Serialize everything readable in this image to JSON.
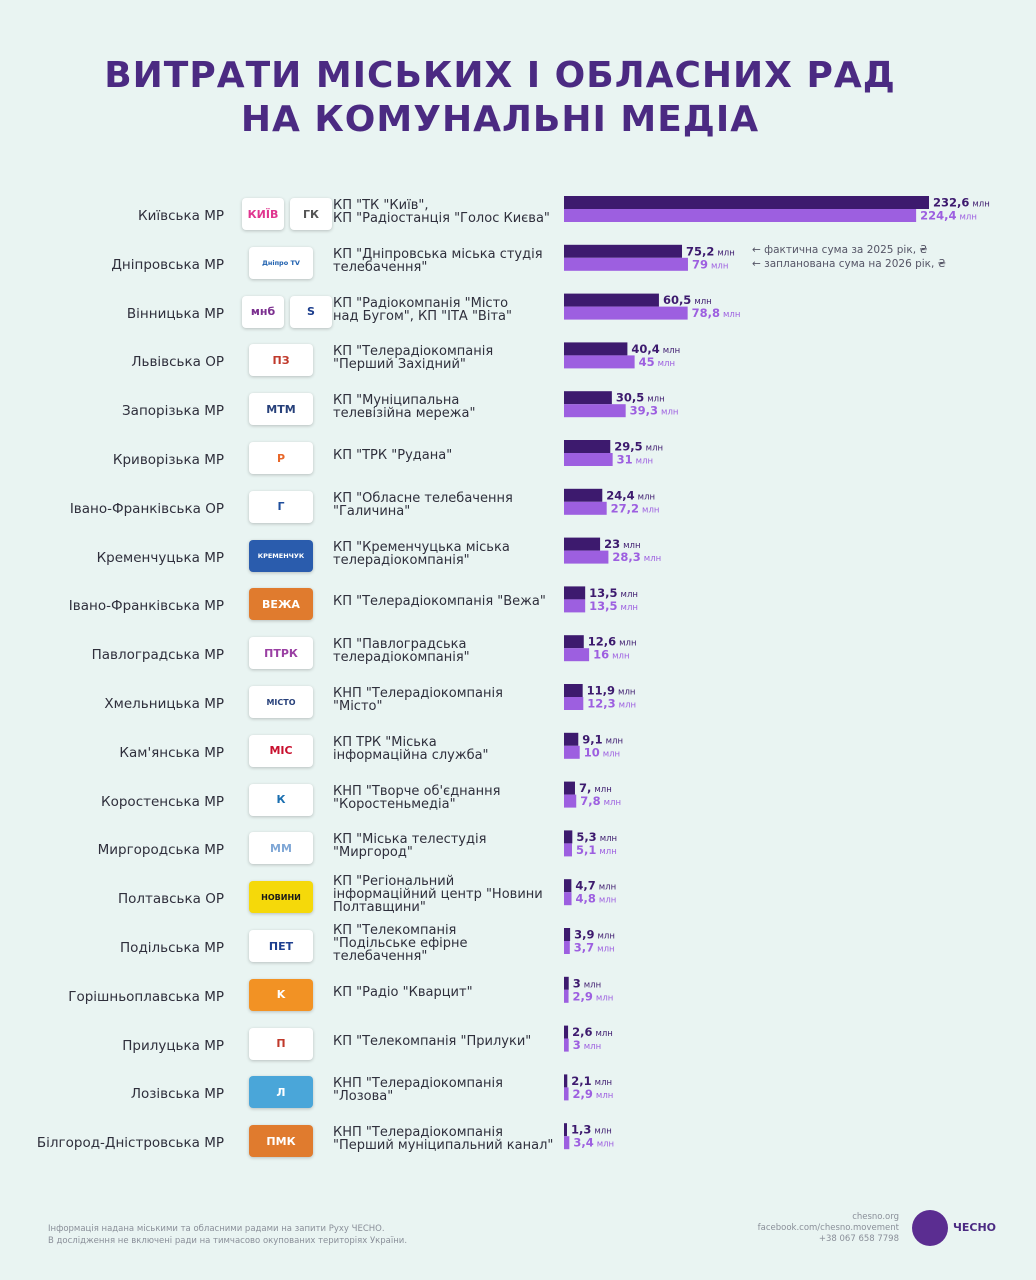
{
  "title": {
    "line1": "ВИТРАТИ МІСЬКИХ І ОБЛАСНИХ РАД",
    "line2": "НА КОМУНАЛЬНІ МЕДІА"
  },
  "legend": {
    "actual": "← фактична сума за 2025 рік, ₴",
    "planned": "← запланована сума на 2026 рік, ₴"
  },
  "colors": {
    "actual": "#3d1a6e",
    "planned": "#9d5fe0",
    "title": "#4b2a82",
    "background": "#e9f4f2"
  },
  "unit": "млн",
  "rows": [
    {
      "council": "Київська МР",
      "media": [
        "КП \"ТК \"Київ\",",
        "КП \"Радіостанція \"Голос Києва\""
      ],
      "logos": [
        {
          "icon": "kyiv-tv-logo-icon",
          "text": "КИЇВ",
          "color": "#e0358f"
        },
        {
          "icon": "holos-kyieva-logo-icon",
          "text": "ГК",
          "color": "#555"
        }
      ]
    },
    {
      "council": "Дніпровська МР",
      "media": [
        "КП \"Дніпровська міська студія",
        "телебачення\""
      ],
      "logos": [
        {
          "icon": "dnipro-tv-logo-icon",
          "text": "Дніпро TV",
          "color": "#1d5fae"
        }
      ]
    },
    {
      "council": "Вінницька МР",
      "media": [
        "КП \"Радіокомпанія \"Місто",
        "над Бугом\", КП \"ІТА \"Віта\""
      ],
      "logos": [
        {
          "icon": "misto-nad-buhom-logo-icon",
          "text": "мнб",
          "color": "#7b2f8f"
        },
        {
          "icon": "vita-logo-icon",
          "text": "S",
          "color": "#1a3c8c"
        }
      ]
    },
    {
      "council": "Львівська ОР",
      "media": [
        "КП \"Телерадіокомпанія",
        "\"Перший Західний\""
      ],
      "logos": [
        {
          "icon": "pershyi-zakhidnyi-logo-icon",
          "text": "ПЗ",
          "color": "#c0392b"
        }
      ]
    },
    {
      "council": "Запорізька МР",
      "media": [
        "КП \"Муніципальна",
        "телевізійна мережа\""
      ],
      "logos": [
        {
          "icon": "mtm-logo-icon",
          "text": "МТМ",
          "color": "#27407a"
        }
      ]
    },
    {
      "council": "Криворізька МР",
      "media": [
        "КП \"ТРК \"Рудана\""
      ],
      "logos": [
        {
          "icon": "rudana-logo-icon",
          "text": "Р",
          "color": "#e8672a"
        }
      ]
    },
    {
      "council": "Івано-Франківська ОР",
      "media": [
        "КП \"Обласне телебачення",
        "\"Галичина\""
      ],
      "logos": [
        {
          "icon": "halychyna-logo-icon",
          "text": "Г",
          "color": "#1f4e9c"
        }
      ]
    },
    {
      "council": "Кременчуцька МР",
      "media": [
        "КП \"Кременчуцька міська",
        "телерадіокомпанія\""
      ],
      "logos": [
        {
          "icon": "kremenchuk-logo-icon",
          "text": "КРЕМЕНЧУК",
          "color": "#ffffff",
          "bg": "#2a5cad"
        }
      ]
    },
    {
      "council": "Івано-Франківська МР",
      "media": [
        "КП \"Телерадіокомпанія \"Вежа\""
      ],
      "logos": [
        {
          "icon": "vezha-logo-icon",
          "text": "ВЕЖА",
          "color": "#ffffff",
          "bg": "#e07b2e"
        }
      ]
    },
    {
      "council": "Павлоградська МР",
      "media": [
        "КП \"Павлоградська",
        "телерадіокомпанія\""
      ],
      "logos": [
        {
          "icon": "ptrk-logo-icon",
          "text": "ПТРК",
          "color": "#9a3fa3"
        }
      ]
    },
    {
      "council": "Хмельницька МР",
      "media": [
        "КНП \"Телерадіокомпанія",
        "\"Місто\""
      ],
      "logos": [
        {
          "icon": "misto-logo-icon",
          "text": "МІСТО",
          "color": "#27407a"
        }
      ]
    },
    {
      "council": "Кам'янська МР",
      "media": [
        "КП ТРК \"Міська",
        "інформаційна служба\""
      ],
      "logos": [
        {
          "icon": "mis-logo-icon",
          "text": "МІС",
          "color": "#c8102e"
        }
      ]
    },
    {
      "council": "Коростенська МР",
      "media": [
        "КНП \"Творче об'єднання",
        "\"Коростеньмедіа\""
      ],
      "logos": [
        {
          "icon": "korostenmedia-logo-icon",
          "text": "К",
          "color": "#1b6fb0"
        }
      ]
    },
    {
      "council": "Миргородська МР",
      "media": [
        "КП \"Міська телестудія",
        "\"Миргород\""
      ],
      "logos": [
        {
          "icon": "myrhorod-logo-icon",
          "text": "ММ",
          "color": "#7fa7d6"
        }
      ]
    },
    {
      "council": "Полтавська ОР",
      "media": [
        "КП \"Регіональний",
        "інформаційний центр \"Новини",
        "Полтавщини\""
      ],
      "logos": [
        {
          "icon": "novyny-poltavshchyny-logo-icon",
          "text": "НОВИНИ",
          "color": "#1a1a1a",
          "bg": "#f5d90a"
        }
      ]
    },
    {
      "council": "Подільська МР",
      "media": [
        "КП \"Телекомпанія",
        "\"Подільське ефірне",
        "телебачення\""
      ],
      "logos": [
        {
          "icon": "pet-logo-icon",
          "text": "ПЕТ",
          "color": "#1d3f8f"
        }
      ]
    },
    {
      "council": "Горішньоплавська МР",
      "media": [
        "КП \"Радіо \"Кварцит\""
      ],
      "logos": [
        {
          "icon": "kvartsyt-logo-icon",
          "text": "K",
          "color": "#ffffff",
          "bg": "#f29224"
        }
      ]
    },
    {
      "council": "Прилуцька МР",
      "media": [
        "КП \"Телекомпанія \"Прилуки\""
      ],
      "logos": [
        {
          "icon": "pryluky-logo-icon",
          "text": "П",
          "color": "#c0392b"
        }
      ]
    },
    {
      "council": "Лозівська МР",
      "media": [
        "КНП \"Телерадіокомпанія",
        "\"Лозова\""
      ],
      "logos": [
        {
          "icon": "lozova-logo-icon",
          "text": "Л",
          "color": "#ffffff",
          "bg": "#4aa6d9"
        }
      ]
    },
    {
      "council": "Білгород-Дністровська МР",
      "media": [
        "КНП \"Телерадіокомпанія",
        "\"Перший муніципальний канал\""
      ],
      "logos": [
        {
          "icon": "pmk-logo-icon",
          "text": "ПМК",
          "color": "#ffffff",
          "bg": "#e07b2e"
        }
      ]
    }
  ],
  "chart_data": {
    "type": "bar",
    "orientation": "horizontal",
    "unit": "млн ₴",
    "categories": [
      "Київська МР",
      "Дніпровська МР",
      "Вінницька МР",
      "Львівська ОР",
      "Запорізька МР",
      "Криворізька МР",
      "Івано-Франківська ОР",
      "Кременчуцька МР",
      "Івано-Франківська МР",
      "Павлоградська МР",
      "Хмельницька МР",
      "Кам'янська МР",
      "Коростенська МР",
      "Миргородська МР",
      "Полтавська ОР",
      "Подільська МР",
      "Горішньоплавська МР",
      "Прилуцька МР",
      "Лозівська МР",
      "Білгород-Дністровська МР"
    ],
    "series": [
      {
        "name": "фактична сума за 2025 рік, ₴",
        "values": [
          232.6,
          75.2,
          60.5,
          40.4,
          30.5,
          29.5,
          24.4,
          23,
          13.5,
          12.6,
          11.9,
          9.1,
          7,
          5.3,
          4.7,
          3.9,
          3,
          2.6,
          2.1,
          1.3
        ],
        "labels": [
          "232,6",
          "75,2",
          "60,5",
          "40,4",
          "30,5",
          "29,5",
          "24,4",
          "23",
          "13,5",
          "12,6",
          "11,9",
          "9,1",
          "7,",
          "5,3",
          "4,7",
          "3,9",
          "3",
          "2,6",
          "2,1",
          "1,3"
        ]
      },
      {
        "name": "запланована сума на 2026 рік, ₴",
        "values": [
          224.4,
          79,
          78.8,
          45,
          39.3,
          31,
          27.2,
          28.3,
          13.5,
          16,
          12.3,
          10,
          7.8,
          5.1,
          4.8,
          3.7,
          2.9,
          3,
          2.9,
          3.4
        ],
        "labels": [
          "224,4",
          "79",
          "78,8",
          "45",
          "39,3",
          "31",
          "27,2",
          "28,3",
          "13,5",
          "16",
          "12,3",
          "10",
          "7,8",
          "5,1",
          "4,8",
          "3,7",
          "2,9",
          "3",
          "2,9",
          "3,4"
        ]
      }
    ],
    "xlim": [
      0,
      232.6
    ],
    "grid": false,
    "legend_position": "right of second row"
  },
  "footer": {
    "note_line1": "Інформація надана міськими та обласними радами на запити Руху ЧЕСНО.",
    "note_line2": "В дослідження не включені ради на тимчасово окупованих територіях України.",
    "contact_site": "chesno.org",
    "contact_facebook": "facebook.com/chesno.movement",
    "contact_phone": "+38 067 658 7798",
    "brand": "ЧЕСНО"
  }
}
